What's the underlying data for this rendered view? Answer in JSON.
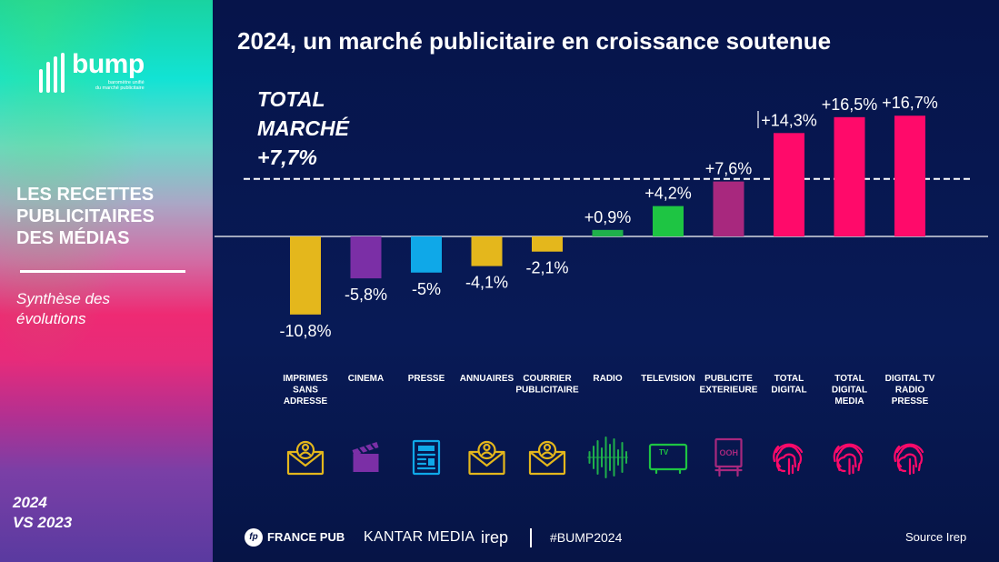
{
  "sidebar": {
    "logo_word": "bump",
    "logo_sub_line1": "baromètre unifié",
    "logo_sub_line2": "du marché publicitaire",
    "title": "LES RECETTES\nPUBLICITAIRES\nDES MÉDIAS",
    "subtitle": "Synthèse des\névolutions",
    "period": "2024\nVS 2023"
  },
  "header": {
    "title": "2024, un marché publicitaire en croissance soutenue"
  },
  "total_market": {
    "label": "TOTAL\nMARCHÉ\n+7,7%",
    "value": 7.7
  },
  "chart_data": {
    "type": "bar",
    "title": "2024, un marché publicitaire en croissance soutenue",
    "unit": "%",
    "categories": [
      "IMPRIMES SANS ADRESSE",
      "CINEMA",
      "PRESSE",
      "ANNUAIRES",
      "COURRIER PUBLICITAIRE",
      "RADIO",
      "TELEVISION",
      "PUBLICITE EXTERIEURE",
      "TOTAL DIGITAL",
      "TOTAL DIGITAL MEDIA",
      "DIGITAL TV RADIO PRESSE"
    ],
    "category_lines": [
      [
        "IMPRIMES",
        "SANS",
        "ADRESSE"
      ],
      [
        "CINEMA"
      ],
      [
        "PRESSE"
      ],
      [
        "ANNUAIRES"
      ],
      [
        "COURRIER",
        "PUBLICITAIRE"
      ],
      [
        "RADIO"
      ],
      [
        "TELEVISION"
      ],
      [
        "PUBLICITE",
        "EXTERIEURE"
      ],
      [
        "TOTAL",
        "DIGITAL"
      ],
      [
        "TOTAL",
        "DIGITAL",
        "MEDIA"
      ],
      [
        "DIGITAL TV",
        "RADIO",
        "PRESSE"
      ]
    ],
    "values": [
      -10.8,
      -5.8,
      -5,
      -4.1,
      -2.1,
      0.9,
      4.2,
      7.6,
      14.3,
      16.5,
      16.7
    ],
    "value_labels": [
      "-10,8%",
      "-5,8%",
      "-5%",
      "-4,1%",
      "-2,1%",
      "+0,9%",
      "+4,2%",
      "+7,6%",
      "+14,3%",
      "+16,5%",
      "+16,7%"
    ],
    "colors": [
      "#e4b71c",
      "#7b2fa6",
      "#0fa8e8",
      "#e4b71c",
      "#e4b71c",
      "#1fb04b",
      "#1ec543",
      "#a8287e",
      "#ff0a6a",
      "#ff0a6a",
      "#ff0a6a"
    ],
    "icons": [
      "mail-person-icon",
      "clapperboard-icon",
      "newspaper-icon",
      "mail-person-icon",
      "mail-person-icon",
      "soundwave-icon",
      "tv-icon",
      "ooh-billboard-icon",
      "fingerprint-icon",
      "fingerprint-icon",
      "fingerprint-icon"
    ],
    "reference_line": {
      "value": 7.7,
      "style": "dashed"
    },
    "ylim": [
      -11,
      17
    ]
  },
  "footer": {
    "francepub": "FRANCE PUB",
    "francepub_mark": "fp",
    "kantar": "KANTAR MEDIA",
    "irep": "irep",
    "hashtag": "#BUMP2024",
    "source": "Source Irep"
  }
}
